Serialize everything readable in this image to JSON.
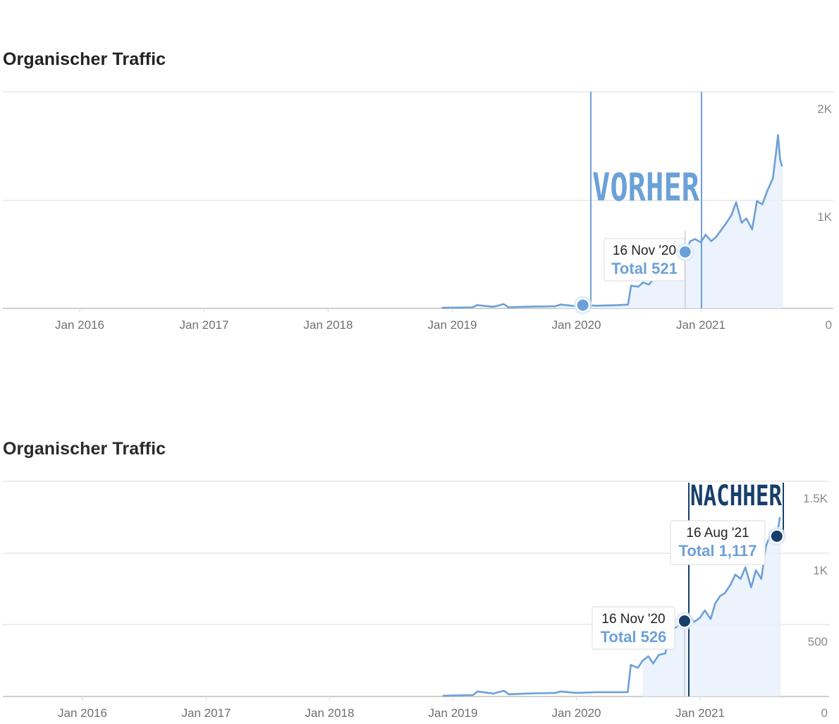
{
  "chart_data": [
    {
      "type": "area",
      "title": "Organischer Traffic",
      "x_tick_labels": [
        "Jan 2016",
        "Jan 2017",
        "Jan 2018",
        "Jan 2019",
        "Jan 2020",
        "Jan 2021"
      ],
      "y_tick_labels": [
        "2K",
        "1K",
        "0"
      ],
      "ylim": [
        0,
        2000
      ],
      "y_axis_position": "right",
      "grid": true,
      "color": "#6ca0d8",
      "series": [
        {
          "x": [
            "2018-12-01",
            "2019-03-01",
            "2019-03-15",
            "2019-05-01",
            "2019-05-15",
            "2019-06-01",
            "2019-06-15",
            "2019-08-01",
            "2019-11-01",
            "2019-11-15",
            "2020-01-01",
            "2020-01-20",
            "2020-03-01",
            "2020-05-01",
            "2020-06-01",
            "2020-06-10",
            "2020-07-01",
            "2020-07-15",
            "2020-08-01",
            "2020-08-15",
            "2020-09-01",
            "2020-09-10",
            "2020-09-20",
            "2020-10-01",
            "2020-10-15",
            "2020-10-25",
            "2020-11-05",
            "2020-11-16",
            "2020-12-01",
            "2020-12-15",
            "2021-01-01",
            "2021-01-15",
            "2021-02-01",
            "2021-02-15",
            "2021-03-01",
            "2021-03-15",
            "2021-04-01",
            "2021-04-15",
            "2021-05-01",
            "2021-05-15",
            "2021-06-01",
            "2021-06-15",
            "2021-07-01",
            "2021-07-15",
            "2021-08-01",
            "2021-08-10",
            "2021-08-16",
            "2021-08-22",
            "2021-08-28"
          ],
          "y": [
            5,
            10,
            30,
            15,
            25,
            40,
            10,
            15,
            20,
            35,
            20,
            30,
            25,
            30,
            35,
            210,
            200,
            240,
            220,
            270,
            300,
            280,
            380,
            340,
            420,
            440,
            430,
            521,
            620,
            640,
            610,
            680,
            620,
            660,
            720,
            780,
            860,
            980,
            790,
            830,
            730,
            990,
            960,
            1080,
            1200,
            1430,
            1600,
            1380,
            1310
          ]
        }
      ],
      "annotations": [
        {
          "label": "VORHER",
          "color": "#6ca0d8"
        },
        {
          "date": "16 Nov '20",
          "total_label": "Total 521",
          "value": 521
        }
      ],
      "marked_points": [
        {
          "x": "2020-01-20",
          "y": 30
        },
        {
          "x": "2020-11-16",
          "y": 521
        }
      ]
    },
    {
      "type": "area",
      "title": "Organischer Traffic",
      "x_tick_labels": [
        "Jan 2016",
        "Jan 2017",
        "Jan 2018",
        "Jan 2019",
        "Jan 2020",
        "Jan 2021"
      ],
      "y_tick_labels": [
        "1.5K",
        "1K",
        "500",
        "0"
      ],
      "ylim": [
        0,
        1500
      ],
      "y_axis_position": "right",
      "grid": true,
      "color": "#6ca0d8",
      "series": [
        {
          "x": [
            "2018-12-01",
            "2019-03-01",
            "2019-03-15",
            "2019-05-01",
            "2019-05-15",
            "2019-06-01",
            "2019-06-15",
            "2019-08-01",
            "2019-11-01",
            "2019-11-15",
            "2020-01-01",
            "2020-03-01",
            "2020-06-01",
            "2020-06-10",
            "2020-07-01",
            "2020-07-15",
            "2020-08-01",
            "2020-08-15",
            "2020-09-01",
            "2020-09-20",
            "2020-10-01",
            "2020-10-15",
            "2020-11-01",
            "2020-11-16",
            "2020-12-01",
            "2020-12-15",
            "2021-01-01",
            "2021-01-15",
            "2021-02-01",
            "2021-02-15",
            "2021-03-01",
            "2021-03-15",
            "2021-04-01",
            "2021-04-15",
            "2021-05-01",
            "2021-05-15",
            "2021-06-01",
            "2021-06-15",
            "2021-07-01",
            "2021-07-15",
            "2021-08-01",
            "2021-08-16",
            "2021-08-25"
          ],
          "y": [
            5,
            10,
            35,
            20,
            30,
            40,
            15,
            20,
            25,
            35,
            25,
            30,
            30,
            220,
            200,
            250,
            280,
            230,
            290,
            300,
            420,
            470,
            500,
            526,
            560,
            520,
            550,
            600,
            540,
            650,
            700,
            720,
            780,
            850,
            820,
            900,
            760,
            880,
            820,
            1050,
            1150,
            1117,
            1250
          ]
        }
      ],
      "annotations": [
        {
          "label": "NACHHER",
          "color": "#173f6b"
        },
        {
          "date": "16 Nov '20",
          "total_label": "Total 526",
          "value": 526
        },
        {
          "date": "16 Aug '21",
          "total_label": "Total 1,117",
          "value": 1117
        }
      ],
      "marked_points": [
        {
          "x": "2020-11-16",
          "y": 526
        },
        {
          "x": "2021-08-16",
          "y": 1117
        }
      ]
    }
  ]
}
